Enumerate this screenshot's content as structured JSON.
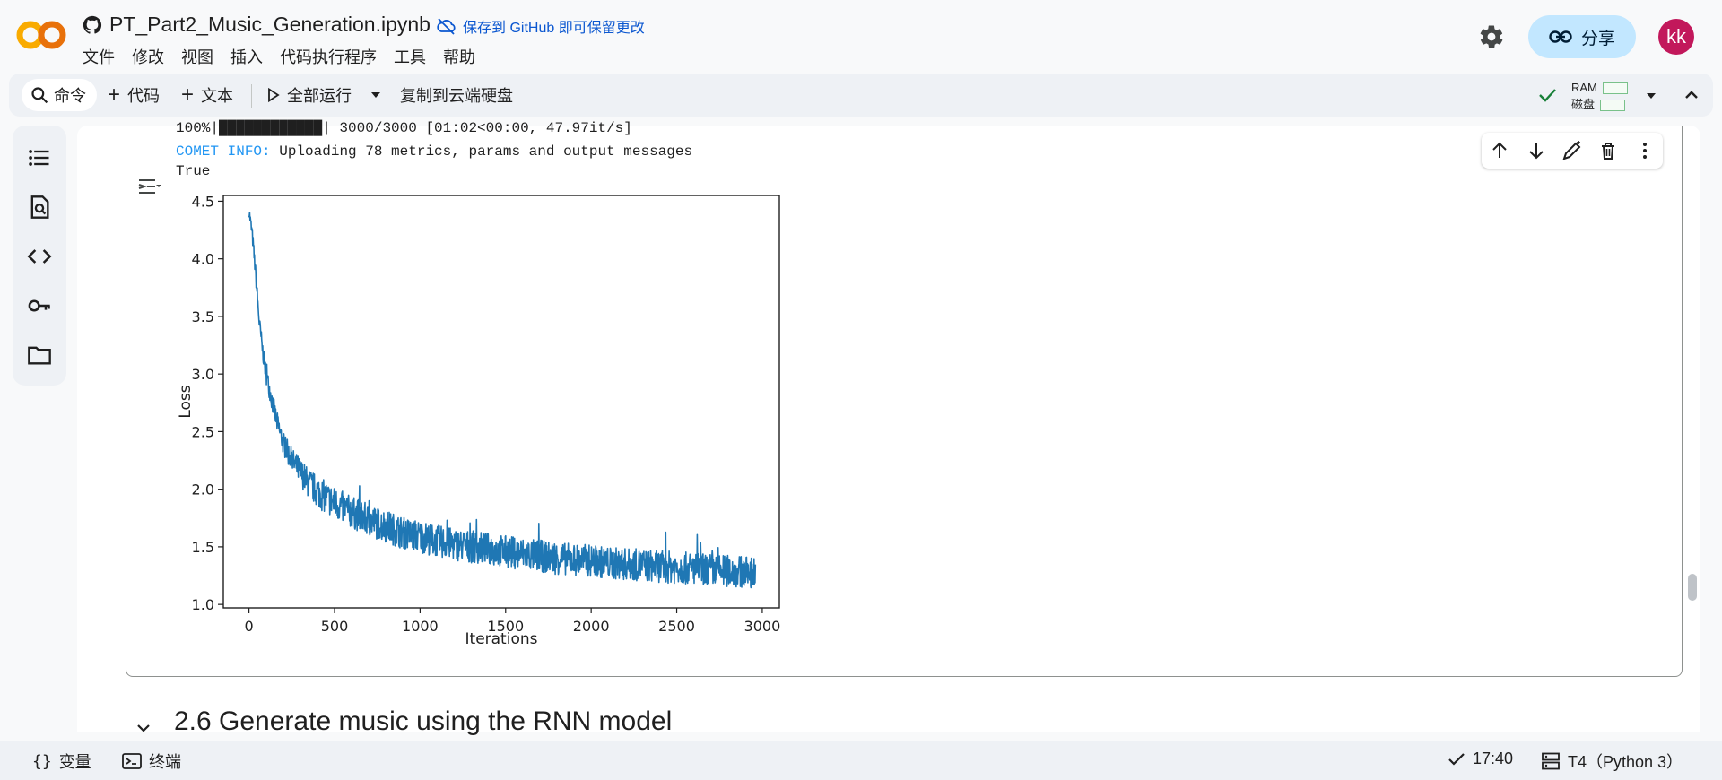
{
  "header": {
    "notebook_title": "PT_Part2_Music_Generation.ipynb",
    "save_link": "保存到 GitHub 即可保留更改",
    "menu": [
      "文件",
      "修改",
      "视图",
      "插入",
      "代码执行程序",
      "工具",
      "帮助"
    ],
    "share_label": "分享",
    "avatar_text": "kk"
  },
  "toolbar": {
    "command_label": "命令",
    "add_code_label": "代码",
    "add_text_label": "文本",
    "run_all_label": "全部运行",
    "copy_to_drive_label": "复制到云端硬盘",
    "ram_label": "RAM",
    "disk_label": "磁盘"
  },
  "output": {
    "progress_line": "100%|████████████| 3000/3000 [01:02<00:00, 47.97it/s]",
    "comet_label": "COMET INFO:",
    "comet_message": " Uploading 78 metrics, params and output messages",
    "result_line": "True"
  },
  "section": {
    "heading": "2.6 Generate music using the RNN model"
  },
  "status": {
    "variables_label": "变量",
    "terminal_label": "终端",
    "time": "17:40",
    "runtime": "T4（Python 3）"
  },
  "colors": {
    "accent": "#0b57d0",
    "share_bg": "#c2e7ff",
    "avatar_bg": "#c2185b",
    "comet_blue": "#2196f3",
    "series_blue": "#1f77b4"
  },
  "chart_data": {
    "type": "line",
    "title": "",
    "xlabel": "Iterations",
    "ylabel": "Loss",
    "xlim": [
      -150,
      3100
    ],
    "ylim": [
      0.97,
      4.55
    ],
    "xticks": [
      0,
      500,
      1000,
      1500,
      2000,
      2500,
      3000
    ],
    "yticks": [
      1.0,
      1.5,
      2.0,
      2.5,
      3.0,
      3.5,
      4.0,
      4.5
    ],
    "grid": false,
    "series": [
      {
        "x": [
          0,
          20,
          40,
          60,
          80,
          100,
          130,
          160,
          200,
          250,
          300,
          350,
          400,
          500,
          600,
          700,
          800,
          900,
          1000,
          1100,
          1200,
          1300,
          1400,
          1500,
          1600,
          1700,
          1800,
          1900,
          2000,
          2100,
          2200,
          2300,
          2400,
          2500,
          2600,
          2700,
          2800,
          2900,
          2960
        ],
        "y": [
          4.42,
          4.2,
          3.85,
          3.45,
          3.2,
          3.0,
          2.8,
          2.6,
          2.4,
          2.25,
          2.15,
          2.05,
          1.98,
          1.88,
          1.8,
          1.73,
          1.68,
          1.62,
          1.59,
          1.55,
          1.52,
          1.5,
          1.48,
          1.46,
          1.44,
          1.42,
          1.4,
          1.39,
          1.38,
          1.36,
          1.35,
          1.34,
          1.33,
          1.32,
          1.31,
          1.3,
          1.29,
          1.28,
          1.28
        ]
      }
    ]
  }
}
